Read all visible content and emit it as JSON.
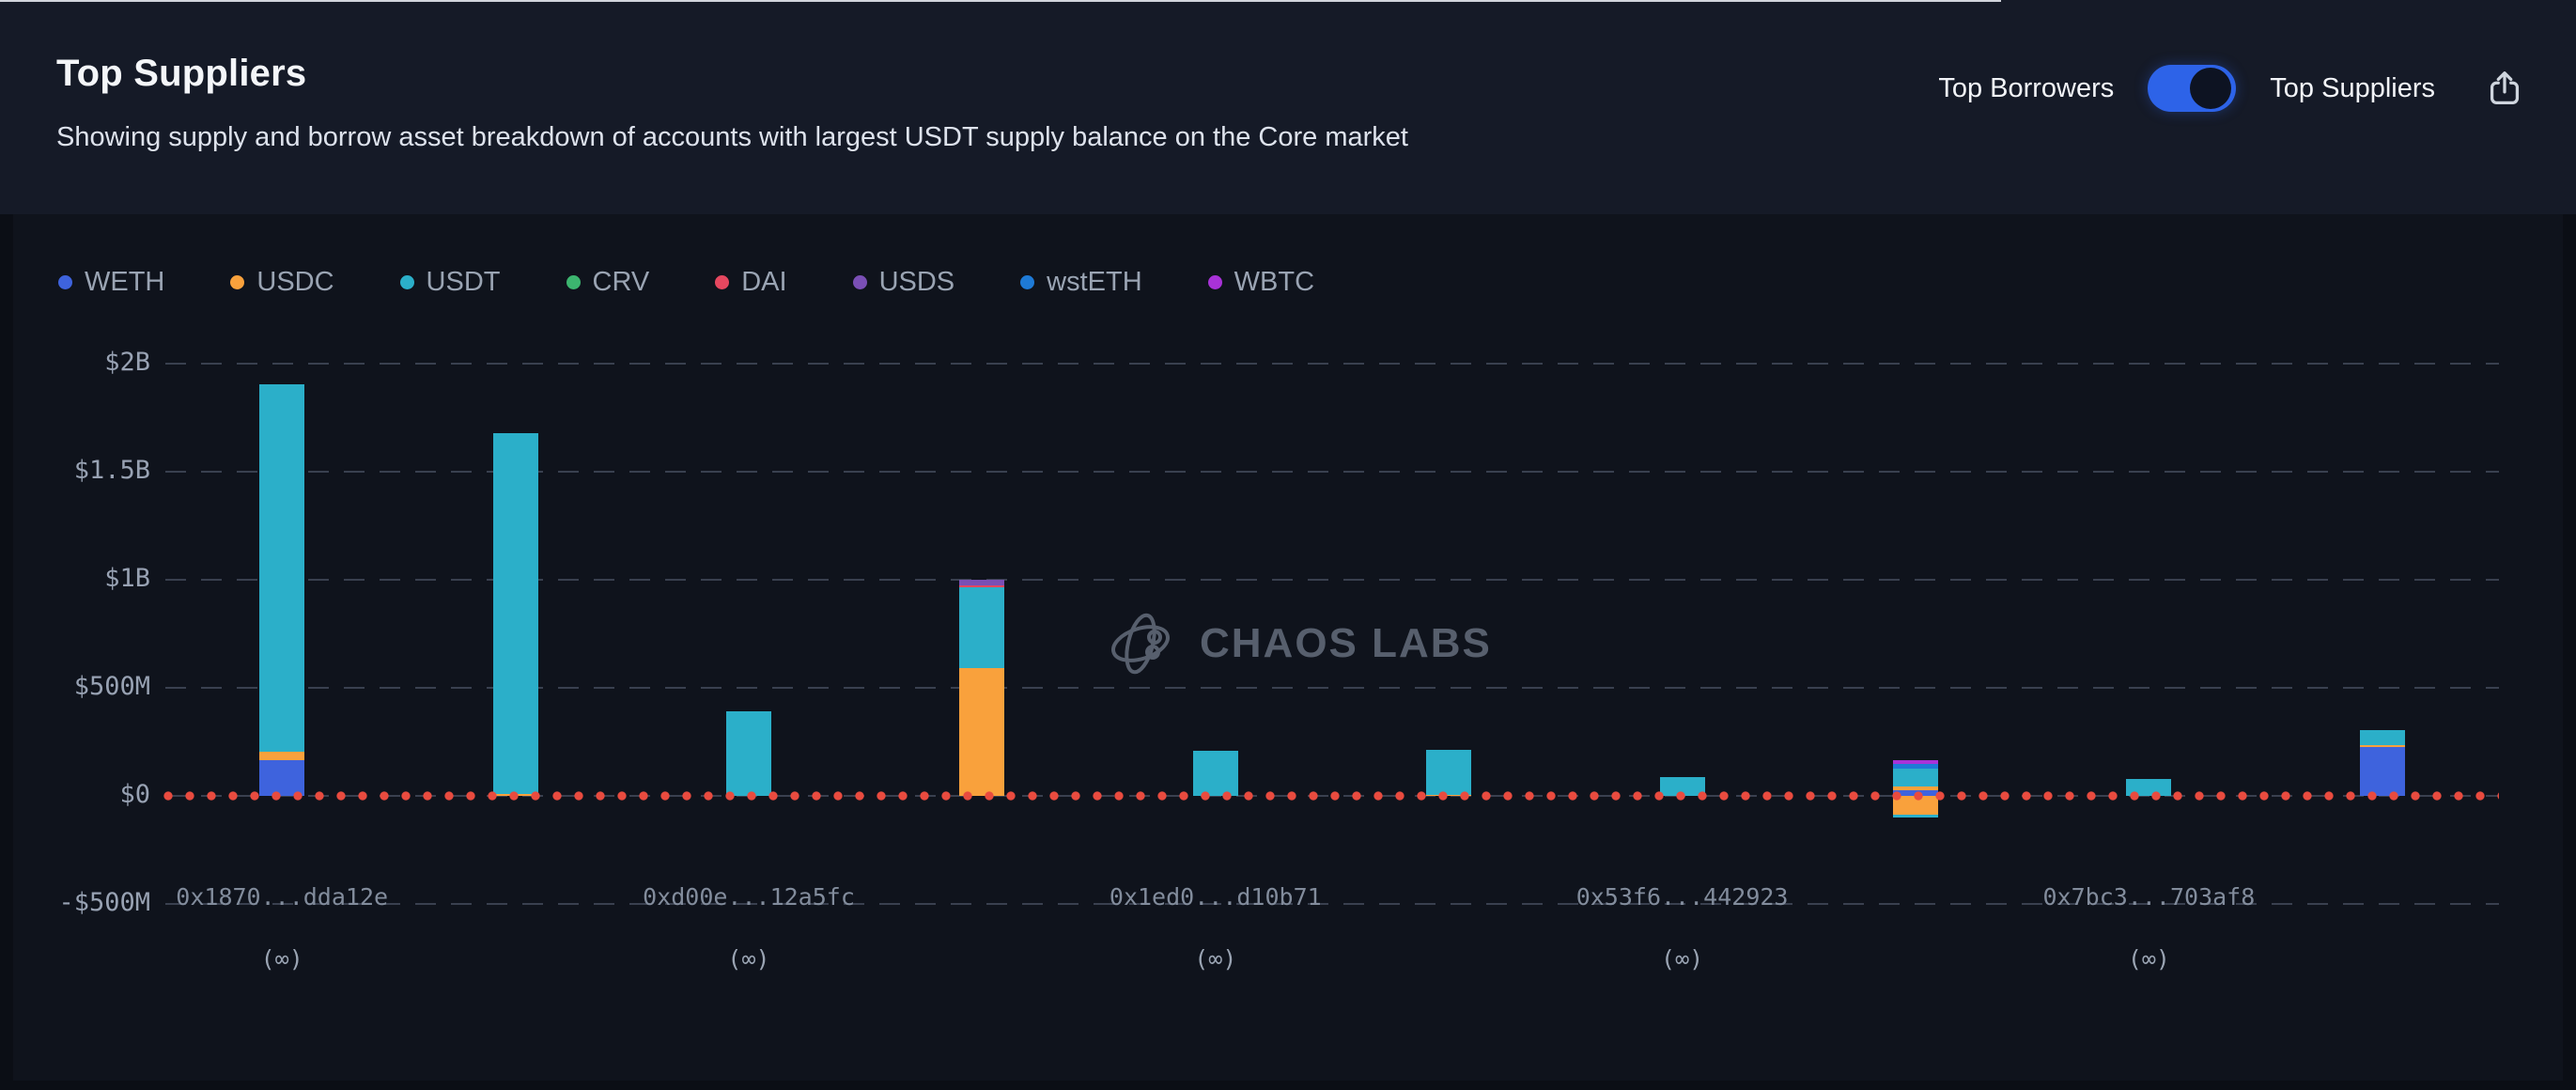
{
  "header": {
    "title": "Top Suppliers",
    "subtitle": "Showing supply and borrow asset breakdown of accounts with largest USDT supply balance on the Core market",
    "toggle": {
      "left_label": "Top Borrowers",
      "right_label": "Top Suppliers",
      "selected": "Top Suppliers",
      "active_color": "#2d63e8"
    }
  },
  "watermark": {
    "text": "CHAOS LABS"
  },
  "legend": {
    "items": [
      {
        "label": "WETH",
        "color": "#3e63dd"
      },
      {
        "label": "USDC",
        "color": "#f9a13c"
      },
      {
        "label": "USDT",
        "color": "#2bafc9"
      },
      {
        "label": "CRV",
        "color": "#3cb56f"
      },
      {
        "label": "DAI",
        "color": "#e5475f"
      },
      {
        "label": "USDS",
        "color": "#7a4fb5"
      },
      {
        "label": "wstETH",
        "color": "#1e7ad6"
      },
      {
        "label": "WBTC",
        "color": "#a832d8"
      }
    ]
  },
  "chart_data": {
    "type": "bar",
    "subtype": "stacked-bar-with-negatives",
    "unit": "USD millions",
    "ylim": [
      -500,
      2000
    ],
    "grid": true,
    "zero_line_color": "#e94b3f",
    "y_ticks": [
      {
        "label": "$2B",
        "value": 2000
      },
      {
        "label": "$1.5B",
        "value": 1500
      },
      {
        "label": "$1B",
        "value": 1000
      },
      {
        "label": "$500M",
        "value": 500
      },
      {
        "label": "$0",
        "value": 0
      },
      {
        "label": "-$500M",
        "value": -500
      }
    ],
    "series_colors": {
      "WETH": "#3e63dd",
      "USDC": "#f9a13c",
      "USDT": "#2bafc9",
      "CRV": "#3cb56f",
      "DAI": "#e5475f",
      "USDS": "#7a4fb5",
      "wstETH": "#1e7ad6",
      "WBTC": "#a832d8"
    },
    "bars": [
      {
        "label": "0x1870...dda12e",
        "sublabel": "(∞)",
        "segments": [
          {
            "asset": "WETH",
            "value": 165
          },
          {
            "asset": "USDC",
            "value": 40
          },
          {
            "asset": "USDT",
            "value": 1700
          }
        ]
      },
      {
        "segments": [
          {
            "asset": "USDC",
            "value": 10
          },
          {
            "asset": "USDT",
            "value": 1670
          }
        ]
      },
      {
        "label": "0xd00e...12a5fc",
        "sublabel": "(∞)",
        "segments": [
          {
            "asset": "USDT",
            "value": 390
          }
        ]
      },
      {
        "segments": [
          {
            "asset": "USDC",
            "value": 590
          },
          {
            "asset": "USDT",
            "value": 375
          },
          {
            "asset": "DAI",
            "value": 8
          },
          {
            "asset": "USDS",
            "value": 27
          }
        ]
      },
      {
        "label": "0x1ed0...d10b71",
        "sublabel": "(∞)",
        "segments": [
          {
            "asset": "USDT",
            "value": 210
          }
        ]
      },
      {
        "segments": [
          {
            "asset": "USDC",
            "value": 6
          },
          {
            "asset": "USDT",
            "value": 205
          }
        ]
      },
      {
        "label": "0x53f6...442923",
        "sublabel": "(∞)",
        "segments": [
          {
            "asset": "USDT",
            "value": 87
          }
        ]
      },
      {
        "segments": [
          {
            "asset": "WETH",
            "value": 26
          },
          {
            "asset": "USDC",
            "value": 17
          },
          {
            "asset": "USDT",
            "value": 84
          },
          {
            "asset": "wstETH",
            "value": 20
          },
          {
            "asset": "WBTC",
            "value": 20
          }
        ],
        "negative_segments": [
          {
            "asset": "USDC",
            "value": 89
          },
          {
            "asset": "USDT",
            "value": 9
          }
        ]
      },
      {
        "label": "0x7bc3...703af8",
        "sublabel": "(∞)",
        "segments": [
          {
            "asset": "USDT",
            "value": 78
          }
        ]
      },
      {
        "segments": [
          {
            "asset": "WETH",
            "value": 226
          },
          {
            "asset": "USDC",
            "value": 8
          },
          {
            "asset": "USDT",
            "value": 72
          }
        ]
      }
    ]
  }
}
